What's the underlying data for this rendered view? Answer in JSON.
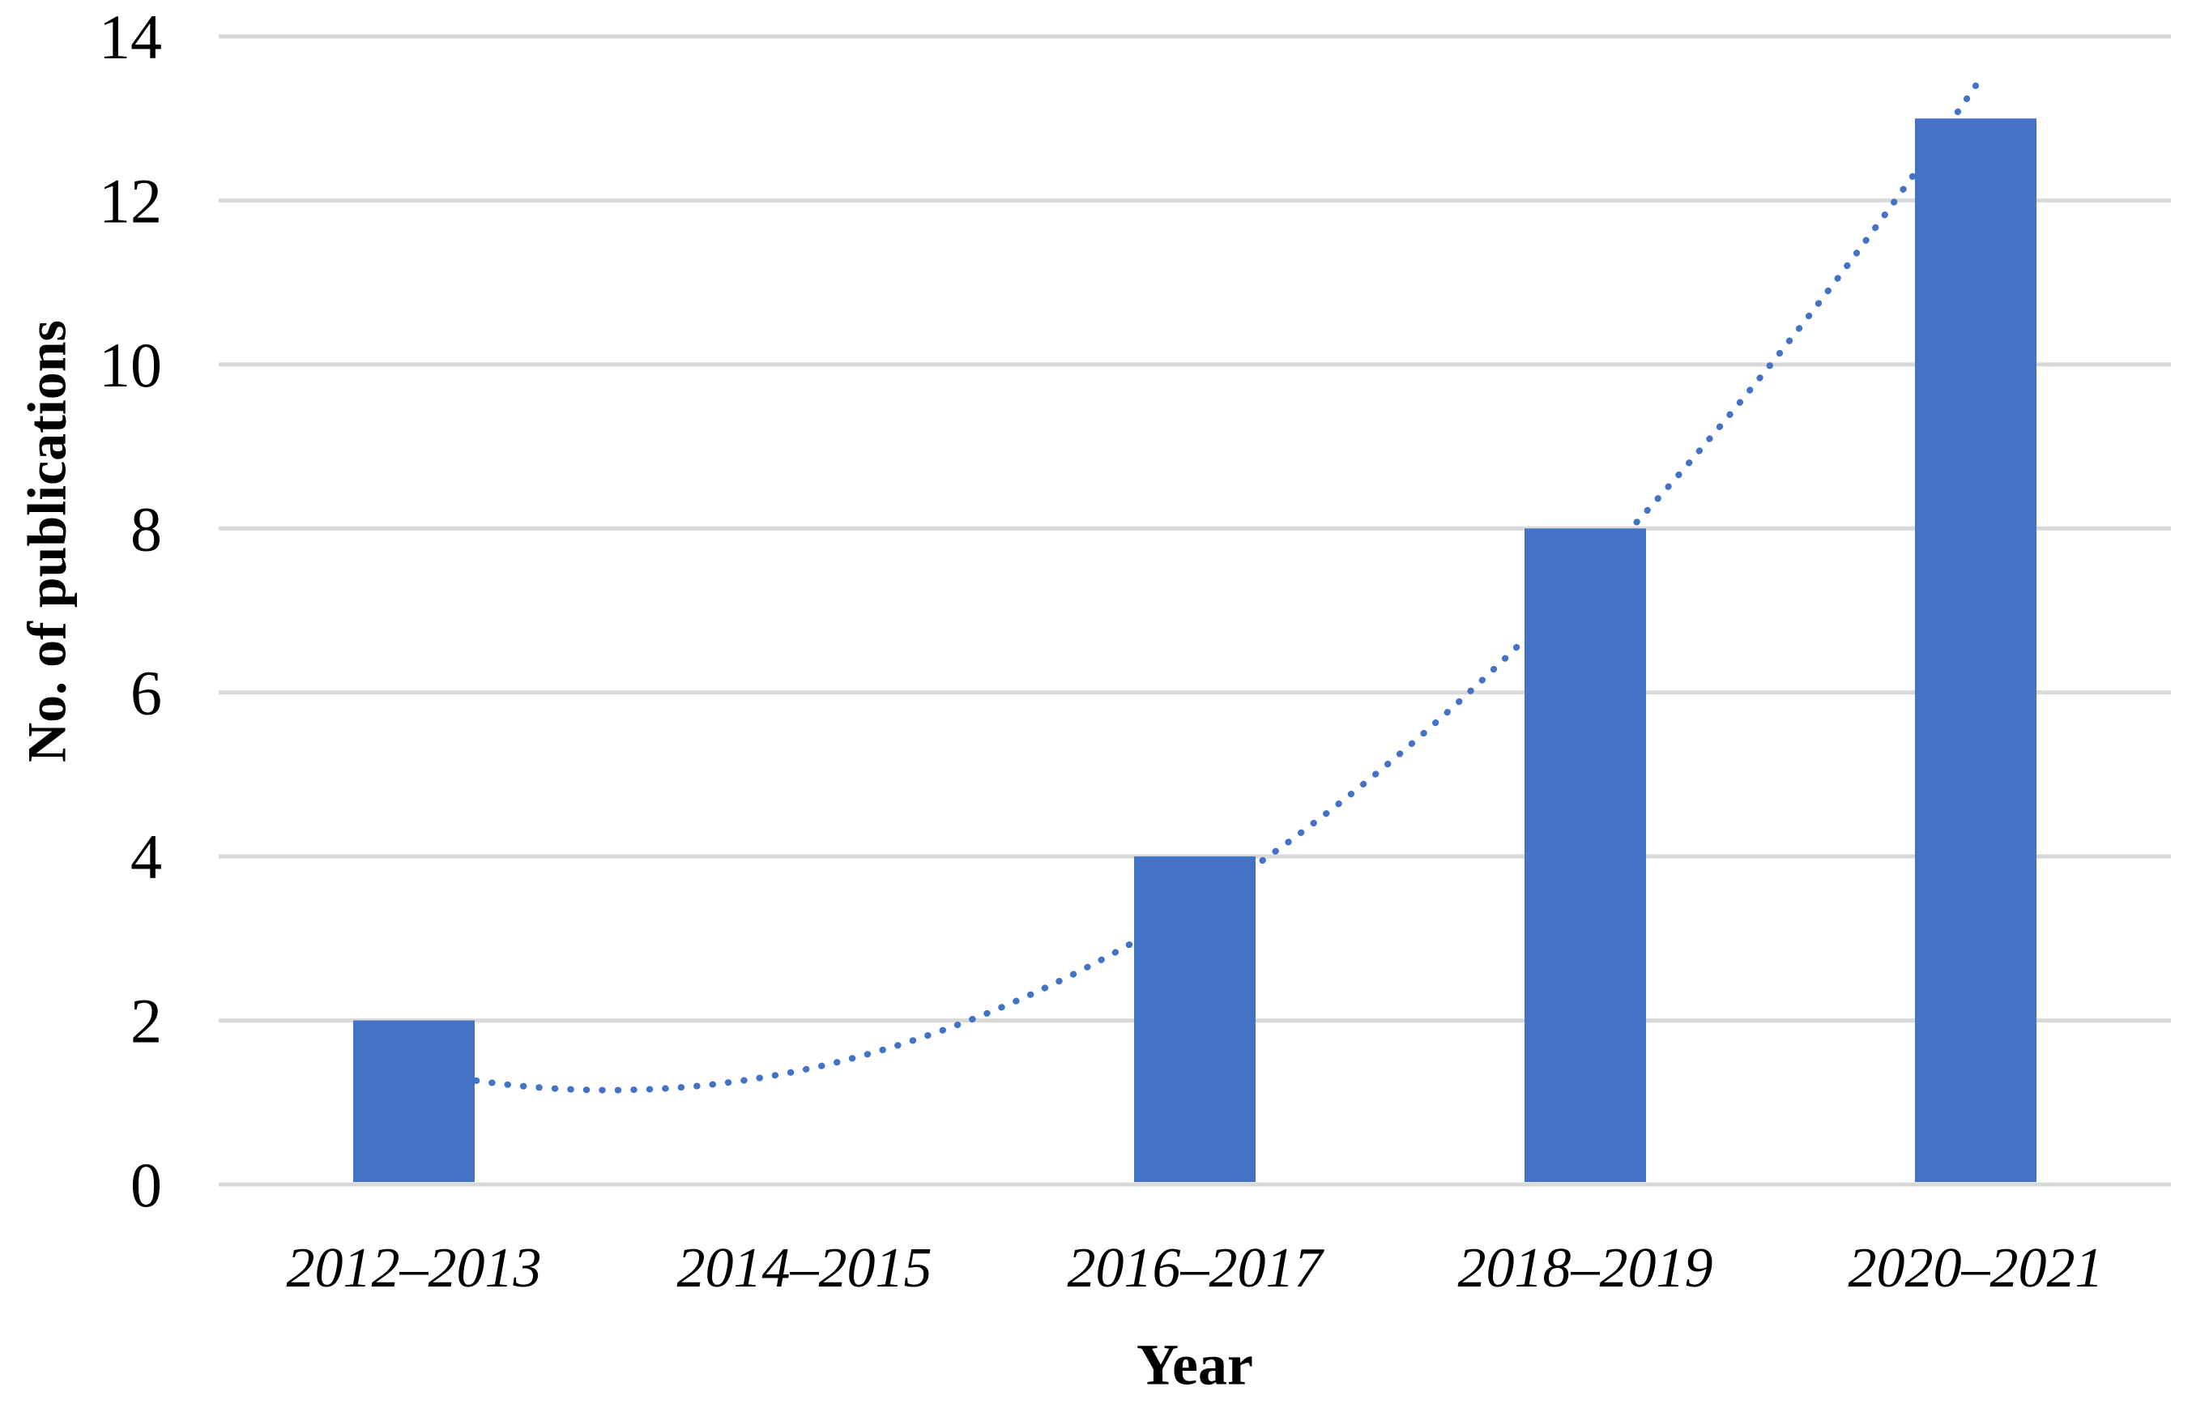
{
  "chart_data": {
    "type": "bar",
    "title": "",
    "categories": [
      "2012–2013",
      "2014–2015",
      "2016–2017",
      "2018–2019",
      "2020–2021"
    ],
    "values": [
      2,
      0,
      4,
      8,
      13
    ],
    "xlabel": "Year",
    "ylabel": "No. of publications",
    "ylim": [
      0,
      14
    ],
    "yticks": [
      0,
      2,
      4,
      6,
      8,
      10,
      12,
      14
    ],
    "grid": true,
    "legend_position": "none",
    "bar_color": "#4472C4",
    "gridline_color": "#D9D9D9",
    "trendline": {
      "type": "polynomial",
      "order": 2,
      "equation": "y = x^2 - 3x + 3.4",
      "coefficients": [
        1,
        -3,
        3.4
      ],
      "x_range": [
        1,
        5
      ],
      "start_value": 1.4,
      "min_value": 1.15,
      "end_value": 13.4,
      "style": "dotted",
      "color": "#4472C4",
      "drawn_behind_bars": true
    }
  }
}
